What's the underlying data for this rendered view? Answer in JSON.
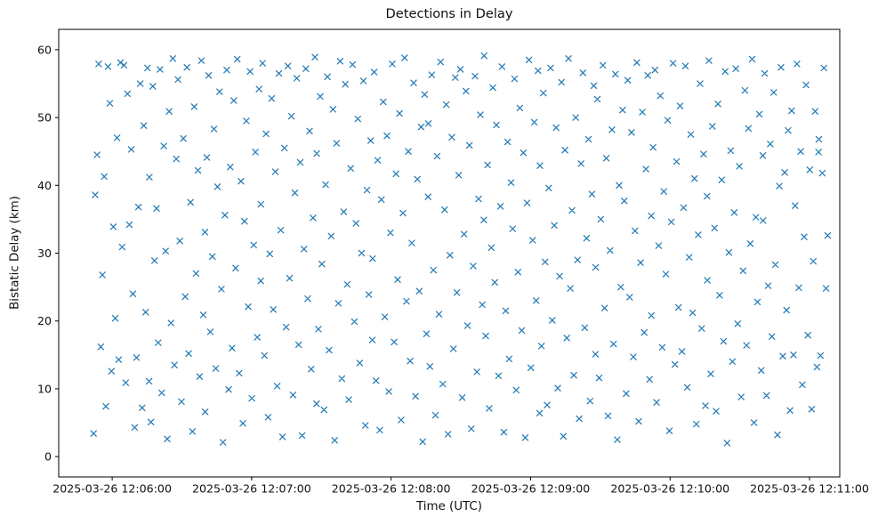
{
  "figure": {
    "title": "Detections in Delay",
    "xlabel": "Time (UTC)",
    "ylabel": "Bistatic Delay (km)"
  },
  "chart_data": {
    "type": "scatter",
    "title": "Detections in Delay",
    "xlabel": "Time (UTC)",
    "ylabel": "Bistatic Delay (km)",
    "marker": "x",
    "marker_color": "#1f77b4",
    "legend": "none",
    "grid": false,
    "x_unit": "seconds after 2025-03-26 12:06:00",
    "xlim": [
      -23,
      313
    ],
    "ylim": [
      -3,
      63
    ],
    "xticks": {
      "values": [
        0,
        60,
        120,
        180,
        240,
        300
      ],
      "labels": [
        "2025-03-26 12:06:00",
        "2025-03-26 12:07:00",
        "2025-03-26 12:08:00",
        "2025-03-26 12:09:00",
        "2025-03-26 12:10:00",
        "2025-03-26 12:11:00"
      ]
    },
    "yticks": [
      0,
      10,
      20,
      30,
      40,
      50,
      60
    ],
    "points": [
      [
        -8,
        3.4
      ],
      [
        -7.3,
        38.6
      ],
      [
        -6.5,
        44.5
      ],
      [
        -5.8,
        57.9
      ],
      [
        -4.9,
        16.2
      ],
      [
        -4.2,
        26.8
      ],
      [
        -3.4,
        41.3
      ],
      [
        -2.7,
        7.4
      ],
      [
        -1.8,
        57.5
      ],
      [
        -1,
        52.1
      ],
      [
        -0.3,
        12.6
      ],
      [
        0.5,
        33.9
      ],
      [
        1.3,
        20.4
      ],
      [
        2.1,
        47
      ],
      [
        2.8,
        14.3
      ],
      [
        3.6,
        58.1
      ],
      [
        4.3,
        30.9
      ],
      [
        5.1,
        57.7
      ],
      [
        5.8,
        10.9
      ],
      [
        6.6,
        53.5
      ],
      [
        7.4,
        34.2
      ],
      [
        8.2,
        45.3
      ],
      [
        8.9,
        24
      ],
      [
        9.7,
        4.3
      ],
      [
        10.5,
        14.6
      ],
      [
        11.3,
        36.8
      ],
      [
        12.1,
        55
      ],
      [
        12.9,
        7.2
      ],
      [
        13.6,
        48.8
      ],
      [
        14.4,
        21.3
      ],
      [
        15.2,
        57.3
      ],
      [
        15.9,
        11.1
      ],
      [
        16,
        41.2
      ],
      [
        16.7,
        5.1
      ],
      [
        17.5,
        54.6
      ],
      [
        18.2,
        28.9
      ],
      [
        19.1,
        36.6
      ],
      [
        19.8,
        16.8
      ],
      [
        20.6,
        57.1
      ],
      [
        21.3,
        9.4
      ],
      [
        22.2,
        45.8
      ],
      [
        23,
        30.3
      ],
      [
        23.7,
        2.6
      ],
      [
        24.5,
        50.9
      ],
      [
        25.3,
        19.7
      ],
      [
        26.1,
        58.7
      ],
      [
        26.8,
        13.5
      ],
      [
        27.6,
        43.9
      ],
      [
        28.3,
        55.6
      ],
      [
        29.1,
        31.8
      ],
      [
        29.8,
        8.1
      ],
      [
        30.6,
        46.9
      ],
      [
        31.4,
        23.6
      ],
      [
        32.2,
        57.4
      ],
      [
        32.9,
        15.2
      ],
      [
        33.7,
        37.5
      ],
      [
        34.5,
        3.7
      ],
      [
        35.3,
        51.6
      ],
      [
        36.1,
        27
      ],
      [
        36.9,
        42.2
      ],
      [
        37.6,
        11.8
      ],
      [
        38.4,
        58.4
      ],
      [
        39.2,
        20.9
      ],
      [
        39.9,
        33.1
      ],
      [
        40,
        6.6
      ],
      [
        40.7,
        44.1
      ],
      [
        41.5,
        56.2
      ],
      [
        42.2,
        18.4
      ],
      [
        43.1,
        29.5
      ],
      [
        43.8,
        48.3
      ],
      [
        44.6,
        13
      ],
      [
        45.3,
        39.8
      ],
      [
        46.2,
        53.8
      ],
      [
        47,
        24.7
      ],
      [
        47.7,
        2.1
      ],
      [
        48.5,
        35.6
      ],
      [
        49.3,
        57
      ],
      [
        50.1,
        9.9
      ],
      [
        50.8,
        42.7
      ],
      [
        51.6,
        16
      ],
      [
        52.3,
        52.5
      ],
      [
        53.1,
        27.8
      ],
      [
        53.8,
        58.6
      ],
      [
        54.6,
        12.3
      ],
      [
        55.4,
        40.6
      ],
      [
        56.2,
        4.9
      ],
      [
        56.9,
        34.7
      ],
      [
        57.7,
        49.5
      ],
      [
        58.5,
        22.1
      ],
      [
        59.3,
        56.8
      ],
      [
        60.1,
        8.6
      ],
      [
        60.9,
        31.2
      ],
      [
        61.6,
        44.9
      ],
      [
        62.4,
        17.6
      ],
      [
        63.2,
        54.2
      ],
      [
        63.9,
        25.9
      ],
      [
        64,
        37.2
      ],
      [
        64.7,
        58
      ],
      [
        65.5,
        14.9
      ],
      [
        66.2,
        47.6
      ],
      [
        67.1,
        5.8
      ],
      [
        67.8,
        29.9
      ],
      [
        68.6,
        52.8
      ],
      [
        69.3,
        21.7
      ],
      [
        70.2,
        42
      ],
      [
        71,
        10.4
      ],
      [
        71.7,
        56.5
      ],
      [
        72.5,
        33.4
      ],
      [
        73.3,
        2.9
      ],
      [
        74.1,
        45.5
      ],
      [
        74.8,
        19.1
      ],
      [
        75.6,
        57.6
      ],
      [
        76.3,
        26.3
      ],
      [
        77.1,
        50.2
      ],
      [
        77.8,
        9.1
      ],
      [
        78.6,
        38.9
      ],
      [
        79.4,
        55.8
      ],
      [
        80.2,
        16.5
      ],
      [
        80.9,
        43.4
      ],
      [
        81.7,
        3.1
      ],
      [
        82.5,
        30.6
      ],
      [
        83.3,
        57.2
      ],
      [
        84.1,
        23.3
      ],
      [
        84.9,
        48
      ],
      [
        85.6,
        12.9
      ],
      [
        86.4,
        35.2
      ],
      [
        87.2,
        58.9
      ],
      [
        87.9,
        7.8
      ],
      [
        88,
        44.7
      ],
      [
        88.7,
        18.8
      ],
      [
        89.5,
        53.1
      ],
      [
        90.2,
        28.4
      ],
      [
        91.1,
        6.9
      ],
      [
        91.8,
        40.1
      ],
      [
        92.6,
        56
      ],
      [
        93.3,
        15.7
      ],
      [
        94.2,
        32.5
      ],
      [
        95,
        51.2
      ],
      [
        95.7,
        2.4
      ],
      [
        96.5,
        46.2
      ],
      [
        97.3,
        22.6
      ],
      [
        98.1,
        58.3
      ],
      [
        98.8,
        11.5
      ],
      [
        99.6,
        36.1
      ],
      [
        100.3,
        54.9
      ],
      [
        101.1,
        25.4
      ],
      [
        101.8,
        8.4
      ],
      [
        102.6,
        42.5
      ],
      [
        103.4,
        57.8
      ],
      [
        104.2,
        19.9
      ],
      [
        104.9,
        34.4
      ],
      [
        105.7,
        49.8
      ],
      [
        106.5,
        13.8
      ],
      [
        107.3,
        30
      ],
      [
        108.1,
        55.4
      ],
      [
        108.9,
        4.6
      ],
      [
        109.6,
        39.3
      ],
      [
        110.4,
        23.9
      ],
      [
        111.2,
        46.6
      ],
      [
        111.9,
        17.2
      ],
      [
        112,
        29.2
      ],
      [
        112.7,
        56.7
      ],
      [
        113.5,
        11.2
      ],
      [
        114.2,
        43.7
      ],
      [
        115.1,
        3.9
      ],
      [
        115.8,
        37.9
      ],
      [
        116.6,
        52.3
      ],
      [
        117.3,
        20.6
      ],
      [
        118.2,
        47.3
      ],
      [
        119,
        9.6
      ],
      [
        119.7,
        33
      ],
      [
        120.5,
        57.9
      ],
      [
        121.3,
        16.9
      ],
      [
        122.1,
        41.7
      ],
      [
        122.8,
        26.1
      ],
      [
        123.6,
        50.6
      ],
      [
        124.3,
        5.4
      ],
      [
        125.1,
        35.9
      ],
      [
        125.8,
        58.8
      ],
      [
        126.6,
        22.9
      ],
      [
        127.4,
        45
      ],
      [
        128.2,
        14.1
      ],
      [
        128.9,
        31.5
      ],
      [
        129.7,
        55.1
      ],
      [
        130.5,
        8.9
      ],
      [
        131.3,
        40.9
      ],
      [
        132.1,
        24.4
      ],
      [
        132.9,
        48.6
      ],
      [
        133.6,
        2.2
      ],
      [
        134.4,
        53.4
      ],
      [
        135.2,
        18.1
      ],
      [
        135.9,
        38.3
      ],
      [
        136,
        49.1
      ],
      [
        136.7,
        13.3
      ],
      [
        137.5,
        56.3
      ],
      [
        138.2,
        27.5
      ],
      [
        139.1,
        6.1
      ],
      [
        139.8,
        44.3
      ],
      [
        140.6,
        21
      ],
      [
        141.3,
        58.2
      ],
      [
        142.2,
        10.7
      ],
      [
        143,
        36.4
      ],
      [
        143.7,
        51.9
      ],
      [
        144.5,
        3.3
      ],
      [
        145.3,
        29.7
      ],
      [
        146.1,
        47.1
      ],
      [
        146.8,
        15.9
      ],
      [
        147.6,
        55.9
      ],
      [
        148.3,
        24.2
      ],
      [
        149.1,
        41.5
      ],
      [
        149.8,
        57.1
      ],
      [
        150.6,
        8.7
      ],
      [
        151.4,
        32.8
      ],
      [
        152.2,
        53.9
      ],
      [
        152.9,
        19.3
      ],
      [
        153.7,
        45.9
      ],
      [
        154.5,
        4.1
      ],
      [
        155.3,
        28.1
      ],
      [
        156.1,
        56.1
      ],
      [
        156.9,
        12.5
      ],
      [
        157.6,
        38
      ],
      [
        158.4,
        50.4
      ],
      [
        159.2,
        22.4
      ],
      [
        159.9,
        34.9
      ],
      [
        160,
        59.1
      ],
      [
        160.7,
        17.8
      ],
      [
        161.5,
        43
      ],
      [
        162.2,
        7.1
      ],
      [
        163.1,
        30.8
      ],
      [
        163.8,
        54.4
      ],
      [
        164.6,
        25.7
      ],
      [
        165.3,
        48.9
      ],
      [
        166.2,
        11.9
      ],
      [
        167,
        36.9
      ],
      [
        167.7,
        57.5
      ],
      [
        168.5,
        3.6
      ],
      [
        169.3,
        21.5
      ],
      [
        170.1,
        46.4
      ],
      [
        170.8,
        14.4
      ],
      [
        171.6,
        40.4
      ],
      [
        172.3,
        33.6
      ],
      [
        173.1,
        55.7
      ],
      [
        173.8,
        9.8
      ],
      [
        174.6,
        27.2
      ],
      [
        175.4,
        51.4
      ],
      [
        176.2,
        18.6
      ],
      [
        176.9,
        44.8
      ],
      [
        177.7,
        2.8
      ],
      [
        178.5,
        37.4
      ],
      [
        179.3,
        58.5
      ],
      [
        180.1,
        13.1
      ],
      [
        180.9,
        31.9
      ],
      [
        181.6,
        49.3
      ],
      [
        182.4,
        23
      ],
      [
        183.2,
        56.9
      ],
      [
        183.9,
        6.4
      ],
      [
        184,
        42.9
      ],
      [
        184.7,
        16.3
      ],
      [
        185.5,
        53.6
      ],
      [
        186.2,
        28.7
      ],
      [
        187.1,
        7.6
      ],
      [
        187.8,
        39.6
      ],
      [
        188.6,
        57.3
      ],
      [
        189.3,
        20.1
      ],
      [
        190.2,
        34.1
      ],
      [
        191,
        48.5
      ],
      [
        191.7,
        10.1
      ],
      [
        192.5,
        26.6
      ],
      [
        193.3,
        55.2
      ],
      [
        194.1,
        3
      ],
      [
        194.8,
        45.2
      ],
      [
        195.6,
        17.5
      ],
      [
        196.3,
        58.7
      ],
      [
        197.1,
        24.8
      ],
      [
        197.8,
        36.3
      ],
      [
        198.6,
        12
      ],
      [
        199.4,
        50
      ],
      [
        200.2,
        29
      ],
      [
        200.9,
        5.6
      ],
      [
        201.7,
        43.2
      ],
      [
        202.5,
        56.6
      ],
      [
        203.3,
        19
      ],
      [
        204.1,
        32.2
      ],
      [
        204.9,
        46.8
      ],
      [
        205.6,
        8.2
      ],
      [
        206.4,
        38.7
      ],
      [
        207.2,
        54.7
      ],
      [
        207.9,
        15.1
      ],
      [
        208,
        27.9
      ],
      [
        208.7,
        52.7
      ],
      [
        209.5,
        11.6
      ],
      [
        210.2,
        35
      ],
      [
        211.1,
        57.7
      ],
      [
        211.8,
        21.9
      ],
      [
        212.6,
        44
      ],
      [
        213.3,
        6
      ],
      [
        214.2,
        30.4
      ],
      [
        215,
        48.2
      ],
      [
        215.7,
        16.6
      ],
      [
        216.5,
        56.4
      ],
      [
        217.3,
        2.5
      ],
      [
        218.1,
        40
      ],
      [
        218.8,
        25
      ],
      [
        219.6,
        51.1
      ],
      [
        220.3,
        37.7
      ],
      [
        221.1,
        9.3
      ],
      [
        221.8,
        55.5
      ],
      [
        222.6,
        23.5
      ],
      [
        223.4,
        47.8
      ],
      [
        224.2,
        14.7
      ],
      [
        224.9,
        33.3
      ],
      [
        225.7,
        58.1
      ],
      [
        226.5,
        5.2
      ],
      [
        227.3,
        28.6
      ],
      [
        228.1,
        50.8
      ],
      [
        228.9,
        18.3
      ],
      [
        229.6,
        42.4
      ],
      [
        230.4,
        56.2
      ],
      [
        231.2,
        11.4
      ],
      [
        231.9,
        35.5
      ],
      [
        232,
        20.8
      ],
      [
        232.7,
        45.6
      ],
      [
        233.5,
        57
      ],
      [
        234.2,
        8
      ],
      [
        235.1,
        31.1
      ],
      [
        235.8,
        53.2
      ],
      [
        236.6,
        16.1
      ],
      [
        237.3,
        39.1
      ],
      [
        238.2,
        26.9
      ],
      [
        239,
        49.6
      ],
      [
        239.7,
        3.8
      ],
      [
        240.5,
        34.6
      ],
      [
        241.3,
        58
      ],
      [
        242.1,
        13.6
      ],
      [
        242.8,
        43.5
      ],
      [
        243.6,
        22
      ],
      [
        244.3,
        51.7
      ],
      [
        245.1,
        15.5
      ],
      [
        245.8,
        36.7
      ],
      [
        246.6,
        57.6
      ],
      [
        247.4,
        10.2
      ],
      [
        248.2,
        29.4
      ],
      [
        248.9,
        47.5
      ],
      [
        249.7,
        21.2
      ],
      [
        250.5,
        41
      ],
      [
        251.3,
        4.8
      ],
      [
        252.1,
        32.7
      ],
      [
        252.9,
        55
      ],
      [
        253.6,
        18.9
      ],
      [
        254.4,
        44.6
      ],
      [
        255.2,
        7.5
      ],
      [
        255.9,
        38.4
      ],
      [
        256,
        26
      ],
      [
        256.7,
        58.4
      ],
      [
        257.5,
        12.2
      ],
      [
        258.2,
        48.7
      ],
      [
        259.1,
        33.7
      ],
      [
        259.8,
        6.7
      ],
      [
        260.6,
        52
      ],
      [
        261.3,
        23.8
      ],
      [
        262.2,
        40.8
      ],
      [
        263,
        17
      ],
      [
        263.7,
        56.8
      ],
      [
        264.5,
        2
      ],
      [
        265.3,
        30.1
      ],
      [
        266.1,
        45.1
      ],
      [
        266.8,
        14
      ],
      [
        267.6,
        36
      ],
      [
        268.3,
        57.2
      ],
      [
        269.1,
        19.6
      ],
      [
        269.8,
        42.8
      ],
      [
        270.6,
        8.8
      ],
      [
        271.4,
        27.4
      ],
      [
        272.2,
        54
      ],
      [
        272.9,
        16.4
      ],
      [
        273.7,
        48.4
      ],
      [
        274.5,
        31.4
      ],
      [
        275.3,
        58.6
      ],
      [
        276.1,
        5
      ],
      [
        276.9,
        35.3
      ],
      [
        277.6,
        22.8
      ],
      [
        278.4,
        50.5
      ],
      [
        279.2,
        12.7
      ],
      [
        279.9,
        44.4
      ],
      [
        280,
        34.8
      ],
      [
        280.7,
        56.5
      ],
      [
        281.5,
        9
      ],
      [
        282.2,
        25.2
      ],
      [
        283.1,
        46.1
      ],
      [
        283.8,
        17.7
      ],
      [
        284.6,
        53.7
      ],
      [
        285.3,
        28.3
      ],
      [
        286.2,
        3.2
      ],
      [
        287,
        39.9
      ],
      [
        287.7,
        57.4
      ],
      [
        288.5,
        14.8
      ],
      [
        289.3,
        41.9
      ],
      [
        290.1,
        21.6
      ],
      [
        290.8,
        48.1
      ],
      [
        291.6,
        6.8
      ],
      [
        292.3,
        51
      ],
      [
        293.1,
        15
      ],
      [
        293.8,
        37
      ],
      [
        294.6,
        57.9
      ],
      [
        295.4,
        24.9
      ],
      [
        296.2,
        45
      ],
      [
        296.9,
        10.6
      ],
      [
        297.7,
        32.4
      ],
      [
        298.5,
        54.8
      ],
      [
        299.3,
        17.9
      ],
      [
        300.1,
        42.3
      ],
      [
        300.9,
        7
      ],
      [
        301.6,
        28.8
      ],
      [
        302.4,
        50.9
      ],
      [
        303.2,
        13.2
      ],
      [
        303.9,
        44.9
      ],
      [
        304,
        46.8
      ],
      [
        304.7,
        14.9
      ],
      [
        305.5,
        41.8
      ],
      [
        306.2,
        57.3
      ],
      [
        307.1,
        24.8
      ],
      [
        307.8,
        32.6
      ]
    ]
  }
}
